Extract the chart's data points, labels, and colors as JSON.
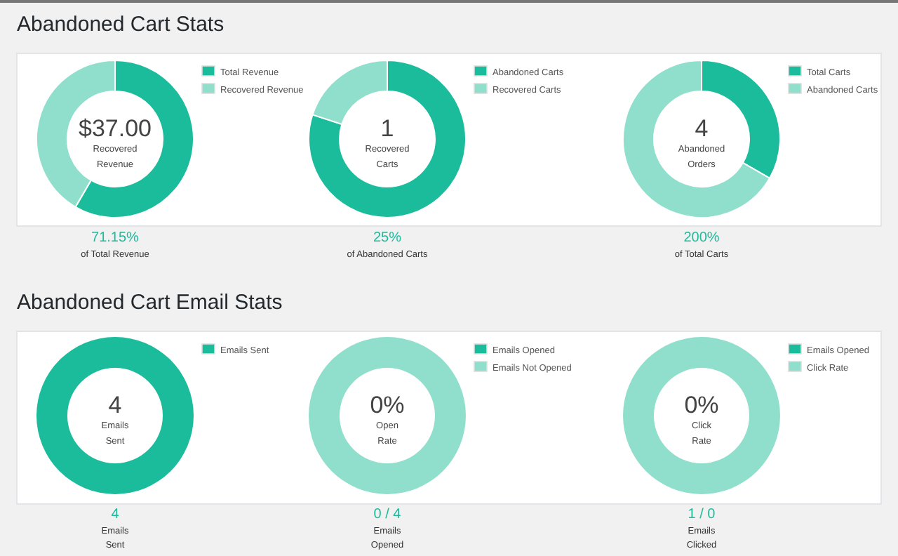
{
  "chart_data": [
    {
      "type": "donut",
      "title": "Abandoned Cart Stats",
      "categories": [
        "Total Revenue",
        "Recovered Revenue"
      ],
      "values": [
        58.4,
        41.6
      ],
      "colors": [
        "#1abc9c",
        "#90dfcd"
      ],
      "legend": "top right",
      "annotations": [
        "$37.00",
        "Recovered",
        "Revenue",
        "71.15%",
        "of Total Revenue"
      ]
    },
    {
      "type": "donut",
      "categories": [
        "Abandoned Carts",
        "Recovered Carts"
      ],
      "values": [
        80,
        20
      ],
      "colors": [
        "#1abc9c",
        "#90dfcd"
      ],
      "legend": "top right",
      "annotations": [
        "1",
        "Recovered",
        "Carts",
        "25%",
        "of Abandoned Carts"
      ]
    },
    {
      "type": "donut",
      "categories": [
        "Total Carts",
        "Abandoned Carts"
      ],
      "values": [
        33.3,
        66.7
      ],
      "colors": [
        "#1abc9c",
        "#90dfcd"
      ],
      "legend": "top right",
      "annotations": [
        "4",
        "Abandoned",
        "Orders",
        "200%",
        "of Total Carts"
      ]
    },
    {
      "type": "donut",
      "title": "Abandoned Cart Email Stats",
      "categories": [
        "Emails Sent"
      ],
      "values": [
        100
      ],
      "colors": [
        "#1abc9c"
      ],
      "legend": "top right",
      "annotations": [
        "4",
        "Emails",
        "Sent",
        "4",
        "Emails",
        "Sent"
      ]
    },
    {
      "type": "donut",
      "categories": [
        "Emails Opened",
        "Emails Not Opened"
      ],
      "values": [
        0,
        100
      ],
      "colors": [
        "#1abc9c",
        "#90dfcd"
      ],
      "legend": "top right",
      "annotations": [
        "0%",
        "Open",
        "Rate",
        "0 / 4",
        "Emails",
        "Opened"
      ]
    },
    {
      "type": "donut",
      "categories": [
        "Emails Opened",
        "Click Rate"
      ],
      "values": [
        0,
        100
      ],
      "colors": [
        "#1abc9c",
        "#90dfcd"
      ],
      "legend": "top right",
      "annotations": [
        "0%",
        "Click",
        "Rate",
        "1 / 0",
        "Emails",
        "Clicked"
      ]
    }
  ]
}
